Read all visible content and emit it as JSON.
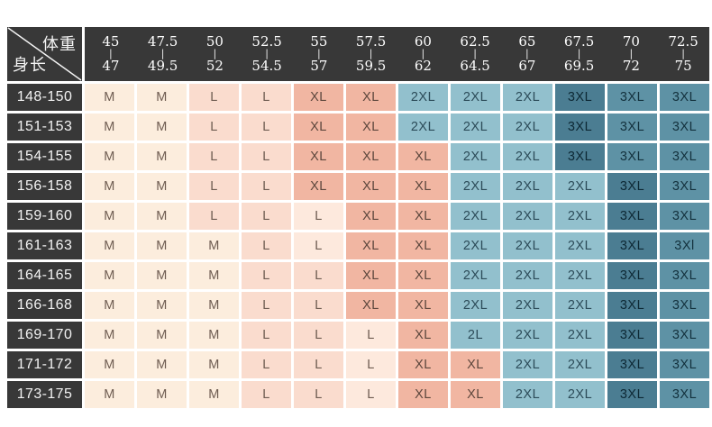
{
  "chart_data": {
    "type": "table",
    "corner": {
      "top_right_label": "体重",
      "bottom_left_label": "身长"
    },
    "column_separator": "|",
    "columns": [
      {
        "top": "45",
        "bottom": "47"
      },
      {
        "top": "47.5",
        "bottom": "49.5"
      },
      {
        "top": "50",
        "bottom": "52"
      },
      {
        "top": "52.5",
        "bottom": "54.5"
      },
      {
        "top": "55",
        "bottom": "57"
      },
      {
        "top": "57.5",
        "bottom": "59.5"
      },
      {
        "top": "60",
        "bottom": "62"
      },
      {
        "top": "62.5",
        "bottom": "64.5"
      },
      {
        "top": "65",
        "bottom": "67"
      },
      {
        "top": "67.5",
        "bottom": "69.5"
      },
      {
        "top": "70",
        "bottom": "72"
      },
      {
        "top": "72.5",
        "bottom": "75"
      }
    ],
    "rows": [
      "148-150",
      "151-153",
      "154-155",
      "156-158",
      "159-160",
      "161-163",
      "164-165",
      "166-168",
      "169-170",
      "171-172",
      "173-175"
    ],
    "values": [
      [
        "M",
        "M",
        "L",
        "L",
        "XL",
        "XL",
        "2XL",
        "2XL",
        "2XL",
        "3XL",
        "3XL",
        "3XL"
      ],
      [
        "M",
        "M",
        "L",
        "L",
        "XL",
        "XL",
        "2XL",
        "2XL",
        "2XL",
        "3XL",
        "3XL",
        "3XL"
      ],
      [
        "M",
        "M",
        "L",
        "L",
        "XL",
        "XL",
        "XL",
        "2XL",
        "2XL",
        "3XL",
        "3XL",
        "3XL"
      ],
      [
        "M",
        "M",
        "L",
        "L",
        "XL",
        "XL",
        "XL",
        "2XL",
        "2XL",
        "2XL",
        "3XL",
        "3XL"
      ],
      [
        "M",
        "M",
        "L",
        "L",
        "L",
        "XL",
        "XL",
        "2XL",
        "2XL",
        "2XL",
        "3XL",
        "3XL"
      ],
      [
        "M",
        "M",
        "M",
        "L",
        "L",
        "XL",
        "XL",
        "2XL",
        "2XL",
        "2XL",
        "3XL",
        "3Xl"
      ],
      [
        "M",
        "M",
        "M",
        "L",
        "L",
        "XL",
        "XL",
        "2XL",
        "2XL",
        "2XL",
        "3XL",
        "3XL"
      ],
      [
        "M",
        "M",
        "M",
        "L",
        "L",
        "XL",
        "XL",
        "2XL",
        "2XL",
        "2XL",
        "3XL",
        "3XL"
      ],
      [
        "M",
        "M",
        "M",
        "L",
        "L",
        "L",
        "XL",
        "2L",
        "2XL",
        "2XL",
        "3XL",
        "3XL"
      ],
      [
        "M",
        "M",
        "M",
        "L",
        "L",
        "L",
        "XL",
        "XL",
        "2XL",
        "2XL",
        "3XL",
        "3XL"
      ],
      [
        "M",
        "M",
        "M",
        "L",
        "L",
        "L",
        "XL",
        "XL",
        "2XL",
        "2XL",
        "3XL",
        "3XL"
      ]
    ]
  },
  "table": {
    "header_bg": "#383838",
    "header_text_color": "#fdfdfd",
    "gap_color": "#ffffff",
    "palette": {
      "cream": {
        "bg": "#fceddd",
        "fg": "#6e5c51"
      },
      "pink": {
        "bg": "#fadcce",
        "fg": "#6e5c51"
      },
      "pinkLight": {
        "bg": "#fde9dd",
        "fg": "#6e5c51"
      },
      "salmon": {
        "bg": "#f1b6a2",
        "fg": "#5d473d"
      },
      "blue": {
        "bg": "#92c0cd",
        "fg": "#2c4b58"
      },
      "teal": {
        "bg": "#5e92a5",
        "fg": "#13313d"
      },
      "tealDark": {
        "bg": "#4b7d92",
        "fg": "#0d2834"
      }
    },
    "cell_colors": [
      [
        "cream",
        "cream",
        "pink",
        "pink",
        "salmon",
        "salmon",
        "blue",
        "blue",
        "blue",
        "tealDark",
        "teal",
        "teal"
      ],
      [
        "cream",
        "cream",
        "pink",
        "pink",
        "salmon",
        "salmon",
        "blue",
        "blue",
        "blue",
        "tealDark",
        "teal",
        "teal"
      ],
      [
        "cream",
        "cream",
        "pink",
        "pink",
        "salmon",
        "salmon",
        "salmon",
        "blue",
        "blue",
        "tealDark",
        "teal",
        "teal"
      ],
      [
        "cream",
        "cream",
        "pink",
        "pink",
        "salmon",
        "salmon",
        "salmon",
        "blue",
        "blue",
        "blue",
        "tealDark",
        "teal"
      ],
      [
        "cream",
        "cream",
        "pink",
        "pink",
        "pinkLight",
        "salmon",
        "salmon",
        "blue",
        "blue",
        "blue",
        "tealDark",
        "teal"
      ],
      [
        "cream",
        "cream",
        "cream",
        "pink",
        "pinkLight",
        "salmon",
        "salmon",
        "blue",
        "blue",
        "blue",
        "tealDark",
        "teal"
      ],
      [
        "cream",
        "cream",
        "cream",
        "pink",
        "pink",
        "salmon",
        "salmon",
        "blue",
        "blue",
        "blue",
        "tealDark",
        "teal"
      ],
      [
        "cream",
        "cream",
        "cream",
        "pink",
        "pink",
        "salmon",
        "salmon",
        "blue",
        "blue",
        "blue",
        "tealDark",
        "teal"
      ],
      [
        "cream",
        "cream",
        "cream",
        "pink",
        "pink",
        "pinkLight",
        "salmon",
        "blue",
        "blue",
        "blue",
        "tealDark",
        "teal"
      ],
      [
        "cream",
        "cream",
        "cream",
        "pink",
        "pink",
        "pinkLight",
        "salmon",
        "salmon",
        "blue",
        "blue",
        "tealDark",
        "teal"
      ],
      [
        "cream",
        "cream",
        "cream",
        "pink",
        "pink",
        "pinkLight",
        "salmon",
        "salmon",
        "blue",
        "blue",
        "tealDark",
        "teal"
      ]
    ]
  }
}
